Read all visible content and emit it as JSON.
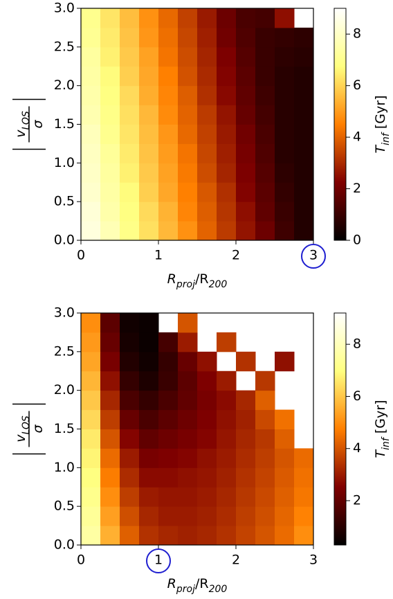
{
  "chart_data": [
    {
      "type": "hexbin",
      "colormap": "afmhot",
      "x": [
        0.125,
        0.375,
        0.625,
        0.875,
        1.125,
        1.375,
        1.625,
        1.875,
        2.125,
        2.375,
        2.625,
        2.875
      ],
      "y": [
        0.125,
        0.375,
        0.625,
        0.875,
        1.125,
        1.375,
        1.625,
        1.875,
        2.125,
        2.375,
        2.625,
        2.875
      ],
      "z": [
        [
          8.4,
          7.7,
          6.9,
          6.2,
          5.5,
          4.8,
          4.0,
          3.3,
          2.6,
          1.9,
          1.1,
          0.6
        ],
        [
          8.3,
          7.5,
          6.8,
          6.1,
          5.4,
          4.6,
          3.9,
          3.2,
          2.5,
          1.7,
          1.0,
          0.6
        ],
        [
          8.1,
          7.4,
          6.7,
          5.9,
          5.2,
          4.5,
          3.8,
          3.1,
          2.3,
          1.6,
          0.9,
          0.6
        ],
        [
          8.0,
          7.3,
          6.5,
          5.8,
          5.1,
          4.4,
          3.6,
          2.9,
          2.2,
          1.5,
          0.8,
          0.6
        ],
        [
          7.9,
          7.2,
          6.4,
          5.7,
          5.0,
          4.3,
          3.5,
          2.8,
          2.1,
          1.4,
          0.7,
          0.6
        ],
        [
          7.8,
          7.0,
          6.3,
          5.6,
          4.9,
          4.1,
          3.4,
          2.7,
          2.0,
          1.3,
          0.7,
          0.6
        ],
        [
          7.6,
          6.9,
          6.2,
          5.5,
          4.7,
          4.0,
          3.3,
          2.6,
          1.8,
          1.2,
          0.7,
          0.6
        ],
        [
          7.5,
          6.8,
          6.1,
          5.3,
          4.6,
          3.9,
          3.1,
          2.4,
          1.7,
          1.1,
          0.7,
          0.6
        ],
        [
          7.4,
          6.7,
          5.9,
          5.2,
          4.5,
          3.7,
          3.0,
          2.3,
          1.6,
          1.0,
          0.7,
          0.6
        ],
        [
          7.3,
          6.5,
          5.8,
          5.1,
          4.3,
          3.6,
          2.9,
          2.2,
          1.5,
          1.0,
          0.8,
          0.7
        ],
        [
          7.1,
          6.4,
          5.7,
          4.9,
          4.2,
          3.5,
          2.8,
          2.0,
          1.4,
          1.0,
          0.9,
          0.8
        ],
        [
          7.0,
          6.3,
          5.6,
          4.8,
          4.1,
          3.4,
          2.7,
          1.9,
          1.3,
          1.2,
          2.5,
          null
        ]
      ],
      "xlim": [
        0,
        3
      ],
      "ylim": [
        0,
        3
      ],
      "xticks": [
        0,
        1,
        2,
        3
      ],
      "yticks": [
        {
          "value": 0,
          "label": "0.0"
        },
        {
          "value": 0.5,
          "label": "0.5"
        },
        {
          "value": 1,
          "label": "1.0"
        },
        {
          "value": 1.5,
          "label": "1.5"
        },
        {
          "value": 2,
          "label": "2.0"
        },
        {
          "value": 2.5,
          "label": "2.5"
        },
        {
          "value": 3,
          "label": "3.0"
        }
      ],
      "xlabel": [
        "R",
        "proj",
        "/R",
        "200"
      ],
      "ylabel": {
        "numerator": [
          "v",
          "LOS"
        ],
        "denominator": "σ"
      },
      "circled_xtick": 3,
      "colorbar": {
        "label": [
          "T",
          "inf",
          " [Gyr]"
        ],
        "lim": [
          0,
          9
        ],
        "ticks": [
          0,
          2,
          4,
          6,
          8
        ]
      }
    },
    {
      "type": "hexbin",
      "colormap": "afmhot",
      "x": [
        0.125,
        0.375,
        0.625,
        0.875,
        1.125,
        1.375,
        1.625,
        1.875,
        2.125,
        2.375,
        2.625,
        2.875
      ],
      "y": [
        0.125,
        0.375,
        0.625,
        0.875,
        1.125,
        1.375,
        1.625,
        1.875,
        2.125,
        2.375,
        2.625,
        2.875
      ],
      "z": [
        [
          7.6,
          5.6,
          4.2,
          3.4,
          3.2,
          3.1,
          3.2,
          3.4,
          3.7,
          4.0,
          4.4,
          5.0
        ],
        [
          7.4,
          5.3,
          3.9,
          3.2,
          3.0,
          3.0,
          3.1,
          3.3,
          3.6,
          3.9,
          4.3,
          4.8
        ],
        [
          7.2,
          5.0,
          3.6,
          3.0,
          2.9,
          2.9,
          3.0,
          3.2,
          3.5,
          3.8,
          4.2,
          4.6
        ],
        [
          7.0,
          4.7,
          3.3,
          2.7,
          2.7,
          2.8,
          2.9,
          3.1,
          3.4,
          3.7,
          4.1,
          4.5
        ],
        [
          6.8,
          4.4,
          3.0,
          2.4,
          2.5,
          2.6,
          2.8,
          3.0,
          3.3,
          3.6,
          4.0,
          4.4
        ],
        [
          6.6,
          4.0,
          2.6,
          2.0,
          2.2,
          2.4,
          2.6,
          2.9,
          3.2,
          3.5,
          4.2,
          null
        ],
        [
          6.3,
          3.6,
          2.1,
          1.6,
          1.9,
          2.2,
          2.5,
          2.8,
          3.1,
          3.8,
          4.5,
          null
        ],
        [
          6.0,
          3.2,
          1.6,
          1.2,
          1.6,
          2.0,
          2.4,
          2.7,
          3.2,
          4.2,
          null,
          null
        ],
        [
          5.7,
          2.8,
          1.2,
          0.8,
          1.3,
          1.9,
          2.5,
          3.0,
          null,
          3.5,
          null,
          null
        ],
        [
          5.4,
          2.4,
          0.9,
          0.6,
          1.2,
          2.1,
          2.8,
          null,
          3.4,
          null,
          2.8,
          null
        ],
        [
          5.2,
          2.1,
          0.7,
          0.5,
          1.5,
          3.0,
          null,
          3.6,
          null,
          null,
          null,
          null
        ],
        [
          5.0,
          1.9,
          0.6,
          0.5,
          null,
          4.0,
          null,
          null,
          null,
          null,
          null,
          null
        ]
      ],
      "xlim": [
        0,
        3
      ],
      "ylim": [
        0,
        3
      ],
      "xticks": [
        0,
        1,
        2,
        3
      ],
      "yticks": [
        {
          "value": 0,
          "label": "0.0"
        },
        {
          "value": 0.5,
          "label": "0.5"
        },
        {
          "value": 1,
          "label": "1.0"
        },
        {
          "value": 1.5,
          "label": "1.5"
        },
        {
          "value": 2,
          "label": "2.0"
        },
        {
          "value": 2.5,
          "label": "2.5"
        },
        {
          "value": 3,
          "label": "3.0"
        }
      ],
      "xlabel": [
        "R",
        "proj",
        "/R",
        "200"
      ],
      "ylabel": {
        "numerator": [
          "v",
          "LOS"
        ],
        "denominator": "σ"
      },
      "circled_xtick": 1,
      "colorbar": {
        "label": [
          "T",
          "inf",
          " [Gyr]"
        ],
        "lim": [
          0.3,
          9.2
        ],
        "ticks": [
          2,
          4,
          6,
          8
        ]
      }
    }
  ]
}
